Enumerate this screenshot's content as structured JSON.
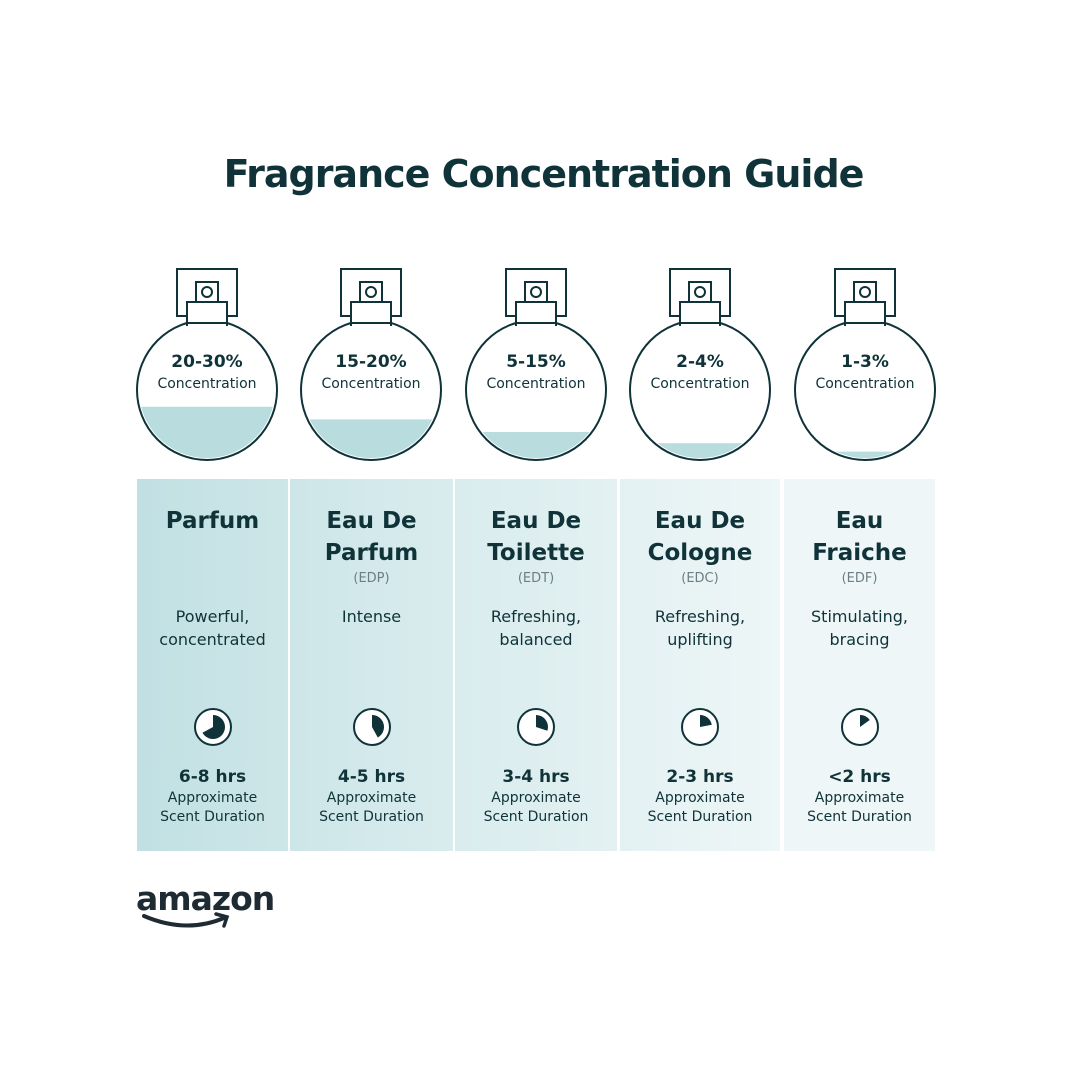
{
  "title": "Fragrance Concentration Guide",
  "colors": {
    "text": "#0f3338",
    "liquid": "#b9dcdf",
    "columns": [
      "#c1e0e3",
      "#cde6e8",
      "#d9ecee",
      "#e3f1f2",
      "#eef6f7"
    ]
  },
  "types": [
    {
      "concentration": "20-30%",
      "concentration_label": "Concentration",
      "fill_level": 0.38,
      "name_line1": "Parfum",
      "name_line2": "",
      "abbr": "",
      "desc_line1": "Powerful,",
      "desc_line2": "concentrated",
      "clock_fraction": 0.67,
      "hours": "6-8 hrs",
      "dur_line1": "Approximate",
      "dur_line2": "Scent Duration"
    },
    {
      "concentration": "15-20%",
      "concentration_label": "Concentration",
      "fill_level": 0.29,
      "name_line1": "Eau De",
      "name_line2": "Parfum",
      "abbr": "(EDP)",
      "desc_line1": "Intense",
      "desc_line2": "",
      "clock_fraction": 0.42,
      "hours": "4-5 hrs",
      "dur_line1": "Approximate",
      "dur_line2": "Scent Duration"
    },
    {
      "concentration": "5-15%",
      "concentration_label": "Concentration",
      "fill_level": 0.2,
      "name_line1": "Eau De",
      "name_line2": "Toilette",
      "abbr": "(EDT)",
      "desc_line1": "Refreshing,",
      "desc_line2": "balanced",
      "clock_fraction": 0.3,
      "hours": "3-4 hrs",
      "dur_line1": "Approximate",
      "dur_line2": "Scent Duration"
    },
    {
      "concentration": "2-4%",
      "concentration_label": "Concentration",
      "fill_level": 0.12,
      "name_line1": "Eau De",
      "name_line2": "Cologne",
      "abbr": "(EDC)",
      "desc_line1": "Refreshing,",
      "desc_line2": "uplifting",
      "clock_fraction": 0.22,
      "hours": "2-3 hrs",
      "dur_line1": "Approximate",
      "dur_line2": "Scent Duration"
    },
    {
      "concentration": "1-3%",
      "concentration_label": "Concentration",
      "fill_level": 0.06,
      "name_line1": "Eau",
      "name_line2": "Fraiche",
      "abbr": "(EDF)",
      "desc_line1": "Stimulating,",
      "desc_line2": "bracing",
      "clock_fraction": 0.15,
      "hours": "<2 hrs",
      "dur_line1": "Approximate",
      "dur_line2": "Scent Duration"
    }
  ],
  "logo": {
    "text": "amazon"
  }
}
